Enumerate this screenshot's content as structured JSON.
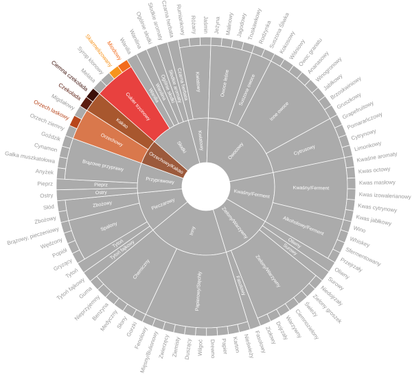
{
  "chart_data": {
    "type": "sunburst",
    "color": "#ababab",
    "nodes": [
      {
        "name": "Kwiatowy",
        "children": [
          {
            "name": "Czarna herbata",
            "value": 1
          },
          {
            "name": "Kwiatowy",
            "children": [
              {
                "name": "Rumiankowy",
                "value": 1
              },
              {
                "name": "Różany",
                "value": 1
              },
              {
                "name": "Jaśmin",
                "value": 1
              }
            ]
          }
        ]
      },
      {
        "name": "Owocowy",
        "children": [
          {
            "name": "Owoce leśne",
            "children": [
              {
                "name": "Jeżyna",
                "value": 1
              },
              {
                "name": "Malinowy",
                "value": 1
              },
              {
                "name": "Jagodowy",
                "value": 1
              },
              {
                "name": "Truskawkowy",
                "value": 1
              }
            ]
          },
          {
            "name": "Suszone owoce",
            "children": [
              {
                "name": "Rodzynka",
                "value": 1
              },
              {
                "name": "Suszona Śliwka",
                "value": 1
              }
            ]
          },
          {
            "name": "Inne owoce",
            "children": [
              {
                "name": "Kokosowy",
                "value": 1
              },
              {
                "name": "Wiśniowy",
                "value": 1
              },
              {
                "name": "Owoc granatu",
                "value": 1
              },
              {
                "name": "Ananasowy",
                "value": 1
              },
              {
                "name": "Winogronowy",
                "value": 1
              },
              {
                "name": "Jabłkowy",
                "value": 1
              },
              {
                "name": "Brzoskwiniowy",
                "value": 1
              },
              {
                "name": "Gruszkowy",
                "value": 1
              }
            ]
          },
          {
            "name": "Cytrusowy",
            "children": [
              {
                "name": "Grapefruitowy",
                "value": 1
              },
              {
                "name": "Pomarańczowy",
                "value": 1
              },
              {
                "name": "Cytrynowy",
                "value": 1
              },
              {
                "name": "Limonkowy",
                "value": 1
              }
            ]
          }
        ]
      },
      {
        "name": "Kwaśny/Ferment",
        "children": [
          {
            "name": "Kwaśny/Ferment",
            "children": [
              {
                "name": "Kwaśne aromaty",
                "value": 1
              },
              {
                "name": "Kwas octowy",
                "value": 1
              },
              {
                "name": "Kwas masłowy",
                "value": 1
              },
              {
                "name": "Kwas izowalerianowy",
                "value": 1
              },
              {
                "name": "Kwas cytrynowy",
                "value": 1
              },
              {
                "name": "Kwas jabłkowy",
                "value": 1
              }
            ]
          },
          {
            "name": "Alkoholowy/Ferment",
            "children": [
              {
                "name": "Wino",
                "value": 1
              },
              {
                "name": "Whiskey",
                "value": 1
              },
              {
                "name": "Sfermentowany",
                "value": 1
              },
              {
                "name": "Przejrzały",
                "value": 1
              }
            ]
          }
        ]
      },
      {
        "name": "Zielony/Warzywny",
        "children": [
          {
            "name": "Oliwny",
            "value": 1
          },
          {
            "name": "Surowy",
            "value": 1
          },
          {
            "name": "Zielony/Warzywny",
            "children": [
              {
                "name": "Niedojrzały",
                "value": 1
              },
              {
                "name": "Zielony groszek",
                "value": 1
              },
              {
                "name": "Świeży",
                "value": 1
              },
              {
                "name": "Ciemnozielony",
                "value": 1
              },
              {
                "name": "Warzywny",
                "value": 1
              },
              {
                "name": "Dojrzały",
                "value": 1
              },
              {
                "name": "Ziołowy",
                "value": 1
              }
            ]
          },
          {
            "name": "Fasolowy",
            "value": 1
          }
        ]
      },
      {
        "name": "Inny",
        "children": [
          {
            "name": "Papierowy/Stęchły",
            "children": [
              {
                "name": "Nieświeży",
                "value": 1
              },
              {
                "name": "Karton",
                "value": 1
              },
              {
                "name": "Papier",
                "value": 1
              },
              {
                "name": "Drewno",
                "value": 1
              },
              {
                "name": "Wilgoć",
                "value": 1
              },
              {
                "name": "Duszący",
                "value": 1
              },
              {
                "name": "Ziemisty",
                "value": 1
              },
              {
                "name": "Zwierzęcy",
                "value": 1
              },
              {
                "name": "Mięsny/Bulionowy",
                "value": 1
              },
              {
                "name": "Fenolowy",
                "value": 1
              }
            ]
          },
          {
            "name": "Chemiczny",
            "children": [
              {
                "name": "Gorzki",
                "value": 1
              },
              {
                "name": "Słony",
                "value": 1
              },
              {
                "name": "Medyczny",
                "value": 1
              },
              {
                "name": "Benzyna",
                "value": 1
              },
              {
                "name": "Nieprzyjemny",
                "value": 1
              },
              {
                "name": "Guma",
                "value": 1
              }
            ]
          }
        ]
      },
      {
        "name": "Pieczarowy",
        "children": [
          {
            "name": "Tytoń fajkowy",
            "value": 1
          },
          {
            "name": "Tytoń",
            "value": 1
          },
          {
            "name": "Spalony",
            "children": [
              {
                "name": "Gryzący",
                "value": 1
              },
              {
                "name": "Popiół",
                "value": 1
              },
              {
                "name": "Wędzony",
                "value": 1
              },
              {
                "name": "Brązowy, pieczeniowy",
                "value": 1
              }
            ]
          },
          {
            "name": "Zbożowy",
            "children": [
              {
                "name": "Zbożowy",
                "value": 1
              },
              {
                "name": "Słód",
                "value": 1
              }
            ]
          }
        ]
      },
      {
        "name": "Przyprawowy",
        "children": [
          {
            "name": "Ostry",
            "value": 1
          },
          {
            "name": "Pieprz",
            "value": 1
          },
          {
            "name": "Brązowe przyprawy",
            "children": [
              {
                "name": "Anyżek",
                "value": 1
              },
              {
                "name": "Gałka muszkatołowa",
                "value": 1
              },
              {
                "name": "Cynamon",
                "value": 1
              },
              {
                "name": "Goździk",
                "value": 1
              }
            ]
          }
        ]
      },
      {
        "name": "Orzechowy/Kakao",
        "color": "#9c5a3c",
        "children": [
          {
            "name": "Orzechowy",
            "color": "#d9784c",
            "children": [
              {
                "name": "Orzech ziemny",
                "value": 1
              },
              {
                "name": "Orzech laskowy",
                "value": 1,
                "color": "#b8461c"
              },
              {
                "name": "Migdałowy",
                "value": 1
              }
            ]
          },
          {
            "name": "Kakao",
            "color": "#a8572e",
            "children": [
              {
                "name": "Czekolada",
                "value": 1,
                "color": "#5b1d10"
              },
              {
                "name": "Ciemna czekolada",
                "value": 1,
                "color": "#3b0f08"
              }
            ]
          }
        ]
      },
      {
        "name": "Słodki",
        "children": [
          {
            "name": "Cukier trzcinowy",
            "color": "#e8413f",
            "children": [
              {
                "name": "Melasa",
                "value": 1
              },
              {
                "name": "Syrop klonowy",
                "value": 1
              },
              {
                "name": "Skarmelizowany",
                "value": 1,
                "color": "#f7941d"
              },
              {
                "name": "Miodowy",
                "value": 1,
                "color": "#f26b1d"
              }
            ]
          },
          {
            "name": "Wanilia",
            "value": 1
          },
          {
            "name": "Wanilina",
            "value": 1
          },
          {
            "name": "Ogólnie słodki",
            "value": 1
          },
          {
            "name": "Słodkie aromaty",
            "value": 1
          }
        ]
      }
    ]
  }
}
